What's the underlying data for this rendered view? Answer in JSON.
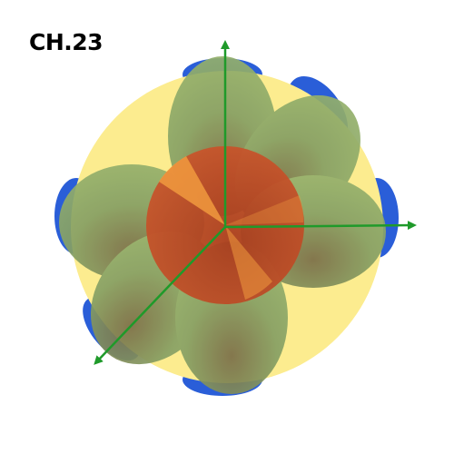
{
  "title": "CH.23",
  "colors": {
    "background": "#ffffff",
    "sphere": "#fcec8f",
    "outer_lobes": "#2a5ed8",
    "petal_lobes": "#8fa86a",
    "core": "#c24a24",
    "core_highlight": "#f19a3e",
    "axes": "#1f9a2a"
  },
  "icons": {
    "axes": "three-axis-arrows-icon"
  }
}
